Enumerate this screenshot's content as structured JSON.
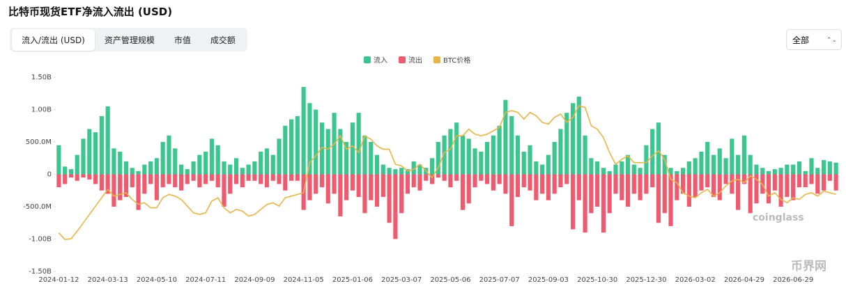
{
  "chart_data": {
    "type": "bar",
    "title": "比特币现货ETF净流入流出 (USD)",
    "tabs": [
      "流入/流出 (USD)",
      "资产管理规模",
      "市值",
      "成交额"
    ],
    "active_tab": 0,
    "filter": "全部",
    "watermarks": [
      "coinglass",
      "币界网"
    ],
    "legend": "top",
    "grid": false,
    "categories": [
      "2024-01-12",
      null,
      null,
      null,
      null,
      null,
      null,
      null,
      "2024-03-13",
      null,
      null,
      null,
      null,
      null,
      null,
      null,
      "2024-05-10",
      null,
      null,
      null,
      null,
      null,
      null,
      null,
      "2024-07-11",
      null,
      null,
      null,
      null,
      null,
      null,
      null,
      "2024-09-09",
      null,
      null,
      null,
      null,
      null,
      null,
      null,
      "2024-11-05",
      null,
      null,
      null,
      null,
      null,
      null,
      null,
      "2025-01-06",
      null,
      null,
      null,
      null,
      null,
      null,
      null,
      "2025-03-07",
      null,
      null,
      null,
      null,
      null,
      null,
      null,
      "2025-05-06",
      null,
      null,
      null,
      null,
      null,
      null,
      null,
      "2025-07-07",
      null,
      null,
      null,
      null,
      null,
      null,
      null,
      "2025-09-03",
      null,
      null,
      null,
      null,
      null,
      null,
      null,
      "2025-10-30",
      null,
      null,
      null,
      null,
      null,
      null,
      null,
      "2025-12-30",
      null,
      null,
      null,
      null,
      null,
      null,
      null,
      "2026-03-02",
      null,
      null,
      null,
      null,
      null,
      null,
      null,
      "2026-04-29",
      null,
      null,
      null,
      null,
      null,
      null,
      null,
      "2026-06-29",
      null,
      null,
      null,
      null,
      null,
      null,
      null
    ],
    "ylim": [
      -1500000000.0,
      1500000000.0
    ],
    "yticks": [
      {
        "value": 1500000000.0,
        "label": "1.50B"
      },
      {
        "value": 1000000000.0,
        "label": "1.00B"
      },
      {
        "value": 500000000.0,
        "label": "500.0M"
      },
      0,
      {
        "value": -500000000.0,
        "label": "-500.0M"
      },
      {
        "value": -1000000000.0,
        "label": "-1.00B"
      },
      {
        "value": -1500000000.0,
        "label": "-1.50B"
      }
    ],
    "y2lim": [
      23000,
      139000
    ],
    "series": [
      {
        "name": "流入",
        "color": "#3cc68f",
        "values": [
          450000000.0,
          120000000.0,
          80000000.0,
          300000000.0,
          550000000.0,
          700000000.0,
          650000000.0,
          900000000.0,
          1050000000.0,
          400000000.0,
          350000000.0,
          200000000.0,
          100000000.0,
          50000000.0,
          150000000.0,
          200000000.0,
          250000000.0,
          500000000.0,
          600000000.0,
          400000000.0,
          150000000.0,
          80000000.0,
          200000000.0,
          300000000.0,
          350000000.0,
          550000000.0,
          450000000.0,
          200000000.0,
          150000000.0,
          250000000.0,
          100000000.0,
          150000000.0,
          200000000.0,
          350000000.0,
          400000000.0,
          300000000.0,
          550000000.0,
          750000000.0,
          850000000.0,
          900000000.0,
          1350000000.0,
          1100000000.0,
          1000000000.0,
          800000000.0,
          700000000.0,
          950000000.0,
          700000000.0,
          500000000.0,
          800000000.0,
          950000000.0,
          600000000.0,
          500000000.0,
          300000000.0,
          150000000.0,
          100000000.0,
          80000000.0,
          100000000.0,
          80000000.0,
          200000000.0,
          150000000.0,
          100000000.0,
          250000000.0,
          500000000.0,
          600000000.0,
          700000000.0,
          800000000.0,
          600000000.0,
          550000000.0,
          400000000.0,
          350000000.0,
          500000000.0,
          600000000.0,
          750000000.0,
          1150000000.0,
          900000000.0,
          600000000.0,
          350000000.0,
          450000000.0,
          200000000.0,
          150000000.0,
          300000000.0,
          500000000.0,
          700000000.0,
          950000000.0,
          1100000000.0,
          1200000000.0,
          600000000.0,
          250000000.0,
          200000000.0,
          100000000.0,
          50000000.0,
          150000000.0,
          200000000.0,
          300000000.0,
          150000000.0,
          100000000.0,
          450000000.0,
          700000000.0,
          800000000.0,
          300000000.0,
          100000000.0,
          50000000.0,
          100000000.0,
          200000000.0,
          250000000.0,
          350000000.0,
          500000000.0,
          300000000.0,
          400000000.0,
          250000000.0,
          550000000.0,
          300000000.0,
          600000000.0,
          300000000.0,
          150000000.0,
          100000000.0,
          50000000.0,
          80000000.0,
          100000000.0,
          150000000.0,
          150000000.0,
          200000000.0,
          50000000.0,
          250000000.0,
          100000000.0,
          220000000.0,
          200000000.0,
          180000000.0
        ]
      },
      {
        "name": "流出",
        "color": "#ef5a6f",
        "values": [
          -200000000.0,
          -150000000.0,
          -50000000.0,
          -100000000.0,
          -50000000.0,
          -80000000.0,
          -150000000.0,
          -250000000.0,
          -300000000.0,
          -500000000.0,
          -400000000.0,
          -350000000.0,
          -200000000.0,
          -550000000.0,
          -300000000.0,
          -150000000.0,
          -400000000.0,
          -200000000.0,
          -150000000.0,
          -200000000.0,
          -250000000.0,
          -150000000.0,
          -100000000.0,
          -200000000.0,
          -150000000.0,
          -100000000.0,
          -200000000.0,
          -500000000.0,
          -300000000.0,
          -150000000.0,
          -200000000.0,
          -100000000.0,
          -100000000.0,
          -150000000.0,
          -200000000.0,
          -100000000.0,
          -150000000.0,
          -250000000.0,
          -100000000.0,
          -100000000.0,
          -550000000.0,
          -400000000.0,
          -300000000.0,
          -200000000.0,
          -450000000.0,
          -300000000.0,
          -650000000.0,
          -400000000.0,
          -250000000.0,
          -350000000.0,
          -600000000.0,
          -400000000.0,
          -500000000.0,
          -350000000.0,
          -750000000.0,
          -1000000000.0,
          -600000000.0,
          -300000000.0,
          -200000000.0,
          -250000000.0,
          -100000000.0,
          -150000000.0,
          -50000000.0,
          -100000000.0,
          -200000000.0,
          -100000000.0,
          -550000000.0,
          -450000000.0,
          -200000000.0,
          -100000000.0,
          -150000000.0,
          -250000000.0,
          -150000000.0,
          -300000000.0,
          -800000000.0,
          -350000000.0,
          -200000000.0,
          -250000000.0,
          -400000000.0,
          -300000000.0,
          -400000000.0,
          -300000000.0,
          -200000000.0,
          -150000000.0,
          -850000000.0,
          -400000000.0,
          -900000000.0,
          -600000000.0,
          -500000000.0,
          -900000000.0,
          -600000000.0,
          -300000000.0,
          -400000000.0,
          -500000000.0,
          -300000000.0,
          -400000000.0,
          -300000000.0,
          -200000000.0,
          -750000000.0,
          -600000000.0,
          -800000000.0,
          -400000000.0,
          -300000000.0,
          -500000000.0,
          -350000000.0,
          -250000000.0,
          -200000000.0,
          -350000000.0,
          -400000000.0,
          -150000000.0,
          -300000000.0,
          -550000000.0,
          -150000000.0,
          -600000000.0,
          -450000000.0,
          -300000000.0,
          -450000000.0,
          -250000000.0,
          -500000000.0,
          -350000000.0,
          -400000000.0,
          -200000000.0,
          -200000000.0,
          -150000000.0,
          -300000000.0,
          -250000000.0,
          -100000000.0,
          -250000000.0
        ]
      },
      {
        "name": "BTC价格",
        "color": "#e9b447",
        "type": "line",
        "axis": "y2",
        "values": [
          46000,
          42000,
          42500,
          47000,
          52000,
          57000,
          62000,
          67000,
          72000,
          68000,
          69000,
          70000,
          66000,
          63000,
          64000,
          61000,
          61000,
          67000,
          69000,
          68000,
          66000,
          62000,
          58000,
          57000,
          58000,
          65000,
          67000,
          61000,
          58000,
          60000,
          59000,
          56000,
          57000,
          60000,
          63000,
          64000,
          62000,
          67000,
          68000,
          69000,
          70000,
          88000,
          92000,
          97000,
          96000,
          99000,
          104000,
          96000,
          98000,
          94000,
          104000,
          102000,
          98000,
          96000,
          96000,
          87000,
          86000,
          83000,
          84000,
          87000,
          83000,
          79000,
          85000,
          94000,
          96000,
          104000,
          104000,
          108000,
          105000,
          104000,
          105000,
          107000,
          109000,
          118000,
          119000,
          118000,
          114000,
          118000,
          116000,
          112000,
          111000,
          115000,
          117000,
          112000,
          115000,
          122000,
          121000,
          110000,
          108000,
          103000,
          94000,
          87000,
          90000,
          92000,
          88000,
          88000,
          88000,
          92000,
          95000,
          90000,
          78000,
          76000,
          70000,
          68000,
          67000,
          70000,
          72000,
          68000,
          70000,
          74000,
          77000,
          78000,
          76000,
          80000,
          78000,
          75000,
          68000,
          70000,
          66000,
          64000,
          67000,
          66000,
          69000,
          70000,
          68000,
          71000,
          70000,
          69000
        ]
      }
    ]
  }
}
